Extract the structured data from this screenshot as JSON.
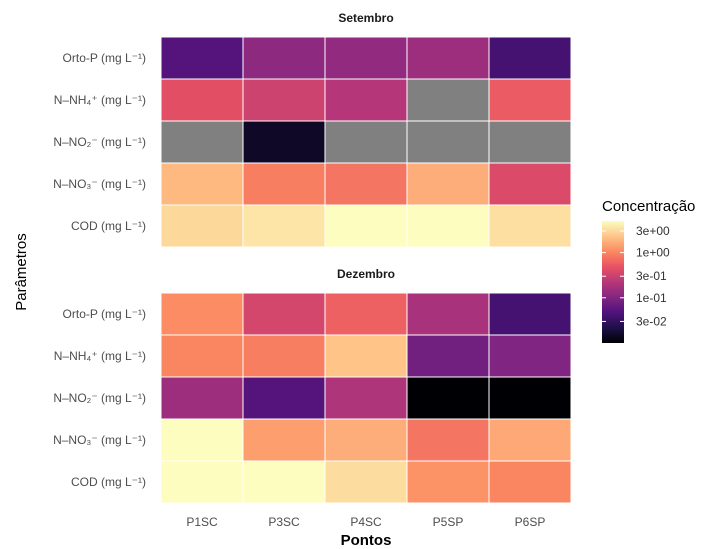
{
  "chart_data": {
    "type": "heatmap",
    "xlabel": "Pontos",
    "ylabel": "Parâmetros",
    "columns": [
      "P1SC",
      "P3SC",
      "P4SC",
      "P5SP",
      "P6SP"
    ],
    "rows": [
      "Orto-P (mg L⁻¹)",
      "N–NH₄⁺ (mg L⁻¹)",
      "N–NO₂⁻ (mg L⁻¹)",
      "N–NO₃⁻ (mg L⁻¹)",
      "COD (mg L⁻¹)"
    ],
    "color_scale": {
      "title": "Concentração",
      "log": true,
      "range": [
        0.01,
        5
      ],
      "ticks": [
        "3e+00",
        "1e+00",
        "3e-01",
        "1e-01",
        "3e-02"
      ],
      "tick_values": [
        3,
        1,
        0.3,
        0.1,
        0.03
      ],
      "palette": [
        "#000004",
        "#1d1147",
        "#51127c",
        "#822681",
        "#b73779",
        "#e75263",
        "#fc8961",
        "#fec488",
        "#fcfdbf"
      ],
      "na_color": "#808080"
    },
    "facets": [
      {
        "title": "Setembro",
        "values": [
          [
            0.05,
            0.12,
            0.13,
            0.15,
            0.04
          ],
          [
            0.45,
            0.32,
            0.22,
            null,
            0.55
          ],
          [
            null,
            0.015,
            null,
            null,
            null
          ],
          [
            2.0,
            0.9,
            0.8,
            1.7,
            0.4
          ],
          [
            3.0,
            3.6,
            5.0,
            5.0,
            3.3
          ]
        ]
      },
      {
        "title": "Dezembro",
        "values": [
          [
            1.1,
            0.35,
            0.6,
            0.18,
            0.04
          ],
          [
            1.0,
            0.9,
            2.3,
            0.08,
            0.1
          ],
          [
            0.15,
            0.05,
            0.2,
            0.01,
            0.007
          ],
          [
            5.5,
            1.4,
            1.7,
            0.8,
            1.6
          ],
          [
            5.5,
            8.0,
            3.2,
            1.2,
            1.0
          ]
        ]
      }
    ]
  }
}
